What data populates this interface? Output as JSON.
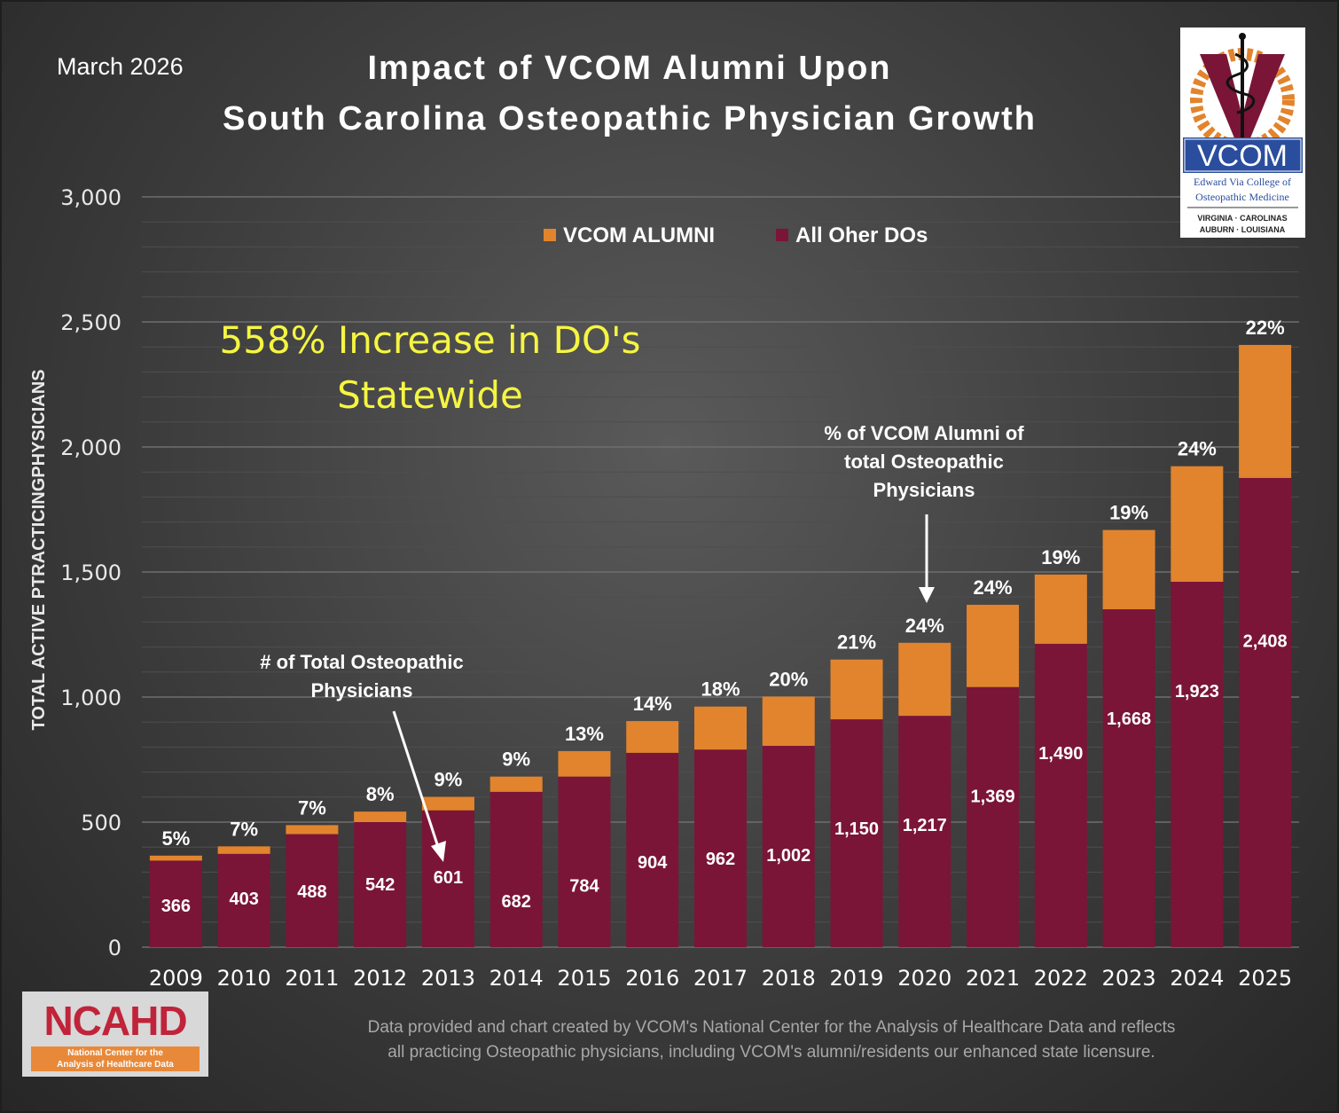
{
  "header": {
    "date": "March 2026",
    "title_line1": "Impact of VCOM Alumni Upon",
    "title_line2": "South Carolina Osteopathic Physician Growth"
  },
  "logo": {
    "name": "VCOM",
    "line1": "Edward Via College of",
    "line2": "Osteopathic Medicine",
    "line3": "VIRGINIA · CAROLINAS",
    "line4": "AUBURN · LOUISIANA"
  },
  "ncahd_logo": {
    "name": "NCAHD",
    "line1": "National Center for the",
    "line2": "Analysis of Healthcare Data"
  },
  "footnote": {
    "line1": "Data provided and chart created by VCOM's National Center for the Analysis of Healthcare Data and reflects",
    "line2": "all practicing Osteopathic physicians, including VCOM's alumni/residents our enhanced state licensure."
  },
  "colors": {
    "vcom_alumni": "#e2842d",
    "other_dos": "#7a1538",
    "highlight_text": "#f5f542",
    "axis_text": "#e8e8e8"
  },
  "chart_data": {
    "type": "bar",
    "stacked": true,
    "ylabel": "TOTAL ACTIVE PTRACTICINGPHYSICIANS",
    "xlabel": "",
    "ylim": [
      0,
      3000
    ],
    "yticks": [
      "0",
      "500",
      "1,000",
      "1,500",
      "2,000",
      "2,500",
      "3,000"
    ],
    "grid": true,
    "legend_position": "top",
    "categories": [
      "2009",
      "2010",
      "2011",
      "2012",
      "2013",
      "2014",
      "2015",
      "2016",
      "2017",
      "2018",
      "2019",
      "2020",
      "2021",
      "2022",
      "2023",
      "2024",
      "2025"
    ],
    "series": [
      {
        "name": "All Oher DOs",
        "color": "#7a1538",
        "values": [
          346,
          373,
          452,
          500,
          547,
          621,
          682,
          777,
          790,
          805,
          911,
          925,
          1040,
          1213,
          1351,
          1461,
          1876
        ]
      },
      {
        "name": "VCOM ALUMNI",
        "color": "#e2842d",
        "values": [
          20,
          30,
          36,
          42,
          54,
          61,
          102,
          127,
          172,
          197,
          239,
          292,
          329,
          277,
          317,
          462,
          532
        ]
      }
    ],
    "totals": [
      "366",
      "403",
      "488",
      "542",
      "601",
      "682",
      "784",
      "904",
      "962",
      "1,002",
      "1,150",
      "1,217",
      "1,369",
      "1,490",
      "1,668",
      "1,923",
      "2,408"
    ],
    "percent_labels": [
      "5%",
      "7%",
      "7%",
      "8%",
      "9%",
      "9%",
      "13%",
      "14%",
      "18%",
      "20%",
      "21%",
      "24%",
      "24%",
      "19%",
      "19%",
      "24%",
      "22%"
    ],
    "annotations": {
      "increase_line1": "558% Increase in DO's",
      "increase_line2": "Statewide",
      "pct_note_line1": "% of  VCOM Alumni of",
      "pct_note_line2": "total Osteopathic",
      "pct_note_line3": "Physicians",
      "total_note_line1": "# of Total Osteopathic",
      "total_note_line2": "Physicians"
    }
  }
}
